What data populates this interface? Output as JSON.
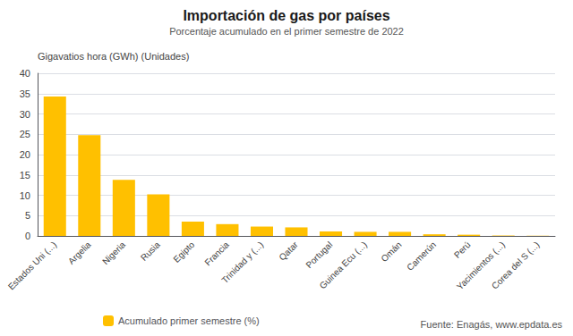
{
  "chart_data": {
    "type": "bar",
    "title": "Importación de gas por países",
    "subtitle": "Porcentaje acumulado en el primer semestre de 2022",
    "y_label": "Gigavatios hora (GWh) (Unidades)",
    "categories": [
      "Estados Uni (...)",
      "Argelia",
      "Nigeria",
      "Rusia",
      "Egipto",
      "Francia",
      "Trinidad y (...)",
      "Qatar",
      "Portugal",
      "Guinea Ecu (...)",
      "Omán",
      "Camerún",
      "Perú",
      "Yacimientos (...)",
      "Corea del S (...)"
    ],
    "series": [
      {
        "name": "Acumulado primer semestre (%)",
        "color": "#FFC000",
        "values": [
          34.3,
          24.8,
          13.8,
          10.2,
          3.5,
          2.9,
          2.3,
          2.1,
          1.1,
          1.0,
          1.0,
          0.4,
          0.3,
          0.1,
          0.05
        ]
      }
    ],
    "ylim": [
      0,
      40
    ],
    "yticks": [
      0,
      5,
      10,
      15,
      20,
      25,
      30,
      35,
      40
    ],
    "grid": true,
    "legend": "bottom",
    "annotations": [
      "Fuente: Enagás, www.epdata.es"
    ]
  }
}
